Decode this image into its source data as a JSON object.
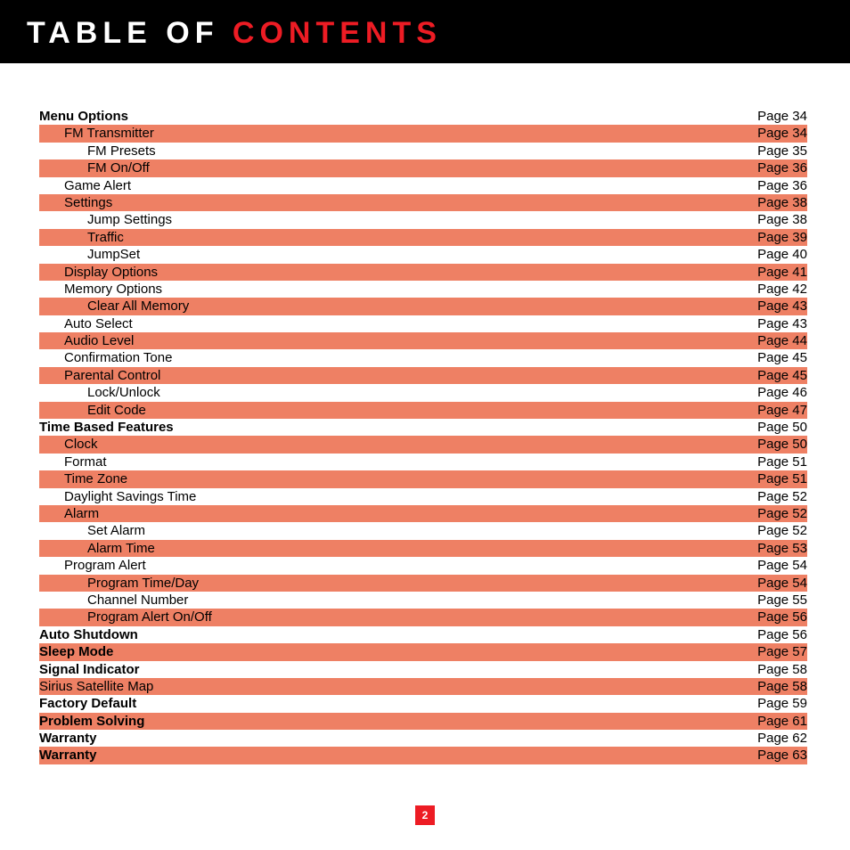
{
  "header": {
    "title_part1": "TABLE OF ",
    "title_part2": "CONTENTS"
  },
  "colors": {
    "header_bg": "#000000",
    "title_white": "#ffffff",
    "title_red": "#ed1c24",
    "row_shade": "#ee8064",
    "page_badge_bg": "#ed1c24",
    "page_badge_text": "#ffffff",
    "text": "#000000"
  },
  "typography": {
    "title_fontsize": 34,
    "title_letter_spacing": 6,
    "row_fontsize": 15,
    "row_height": 19.4
  },
  "page_number": "2",
  "toc": [
    {
      "label": "Menu Options",
      "page": "Page 34",
      "indent": 0,
      "bold": true,
      "shaded": false
    },
    {
      "label": "FM Transmitter",
      "page": "Page 34",
      "indent": 1,
      "bold": false,
      "shaded": true
    },
    {
      "label": "FM Presets",
      "page": "Page 35",
      "indent": 2,
      "bold": false,
      "shaded": false
    },
    {
      "label": "FM On/Off",
      "page": "Page 36",
      "indent": 2,
      "bold": false,
      "shaded": true
    },
    {
      "label": "Game Alert",
      "page": "Page 36",
      "indent": 1,
      "bold": false,
      "shaded": false
    },
    {
      "label": "Settings",
      "page": "Page 38",
      "indent": 1,
      "bold": false,
      "shaded": true
    },
    {
      "label": "Jump Settings",
      "page": "Page 38",
      "indent": 2,
      "bold": false,
      "shaded": false
    },
    {
      "label": "Traffic",
      "page": "Page 39",
      "indent": 2,
      "bold": false,
      "shaded": true
    },
    {
      "label": "JumpSet",
      "page": "Page 40",
      "indent": 2,
      "bold": false,
      "shaded": false
    },
    {
      "label": "Display Options",
      "page": "Page 41",
      "indent": 1,
      "bold": false,
      "shaded": true
    },
    {
      "label": "Memory Options",
      "page": "Page 42",
      "indent": 1,
      "bold": false,
      "shaded": false
    },
    {
      "label": "Clear All Memory",
      "page": "Page 43",
      "indent": 2,
      "bold": false,
      "shaded": true
    },
    {
      "label": "Auto Select",
      "page": "Page 43",
      "indent": 1,
      "bold": false,
      "shaded": false
    },
    {
      "label": "Audio Level",
      "page": "Page 44",
      "indent": 1,
      "bold": false,
      "shaded": true
    },
    {
      "label": "Confirmation Tone",
      "page": "Page 45",
      "indent": 1,
      "bold": false,
      "shaded": false
    },
    {
      "label": "Parental Control",
      "page": "Page 45",
      "indent": 1,
      "bold": false,
      "shaded": true
    },
    {
      "label": "Lock/Unlock",
      "page": "Page 46",
      "indent": 2,
      "bold": false,
      "shaded": false
    },
    {
      "label": "Edit Code",
      "page": "Page 47",
      "indent": 2,
      "bold": false,
      "shaded": true
    },
    {
      "label": "Time Based Features",
      "page": "Page 50",
      "indent": 0,
      "bold": true,
      "shaded": false
    },
    {
      "label": "Clock",
      "page": "Page 50",
      "indent": 1,
      "bold": false,
      "shaded": true
    },
    {
      "label": "Format",
      "page": "Page 51",
      "indent": 1,
      "bold": false,
      "shaded": false
    },
    {
      "label": "Time Zone",
      "page": "Page 51",
      "indent": 1,
      "bold": false,
      "shaded": true
    },
    {
      "label": "Daylight Savings Time",
      "page": "Page 52",
      "indent": 1,
      "bold": false,
      "shaded": false
    },
    {
      "label": "Alarm",
      "page": "Page 52",
      "indent": 1,
      "bold": false,
      "shaded": true
    },
    {
      "label": "Set Alarm",
      "page": "Page 52",
      "indent": 2,
      "bold": false,
      "shaded": false
    },
    {
      "label": "Alarm Time",
      "page": "Page 53",
      "indent": 2,
      "bold": false,
      "shaded": true
    },
    {
      "label": "Program Alert",
      "page": "Page 54",
      "indent": 1,
      "bold": false,
      "shaded": false
    },
    {
      "label": "Program Time/Day",
      "page": "Page 54",
      "indent": 2,
      "bold": false,
      "shaded": true
    },
    {
      "label": "Channel Number",
      "page": "Page 55",
      "indent": 2,
      "bold": false,
      "shaded": false
    },
    {
      "label": "Program Alert On/Off",
      "page": "Page 56",
      "indent": 2,
      "bold": false,
      "shaded": true
    },
    {
      "label": "Auto Shutdown",
      "page": "Page 56",
      "indent": 0,
      "bold": true,
      "shaded": false
    },
    {
      "label": "Sleep Mode",
      "page": "Page 57",
      "indent": 0,
      "bold": true,
      "shaded": true
    },
    {
      "label": "Signal Indicator",
      "page": "Page 58",
      "indent": 0,
      "bold": true,
      "shaded": false
    },
    {
      "label": "Sirius Satellite Map",
      "page": "Page 58",
      "indent": 0,
      "bold": false,
      "shaded": true
    },
    {
      "label": "Factory Default",
      "page": "Page 59",
      "indent": 0,
      "bold": true,
      "shaded": false
    },
    {
      "label": "Problem Solving",
      "page": "Page 61",
      "indent": 0,
      "bold": true,
      "shaded": true
    },
    {
      "label": "Warranty",
      "page": "Page 62",
      "indent": 0,
      "bold": true,
      "shaded": false
    },
    {
      "label": "Warranty",
      "page": "Page 63",
      "indent": 0,
      "bold": true,
      "shaded": true
    }
  ]
}
